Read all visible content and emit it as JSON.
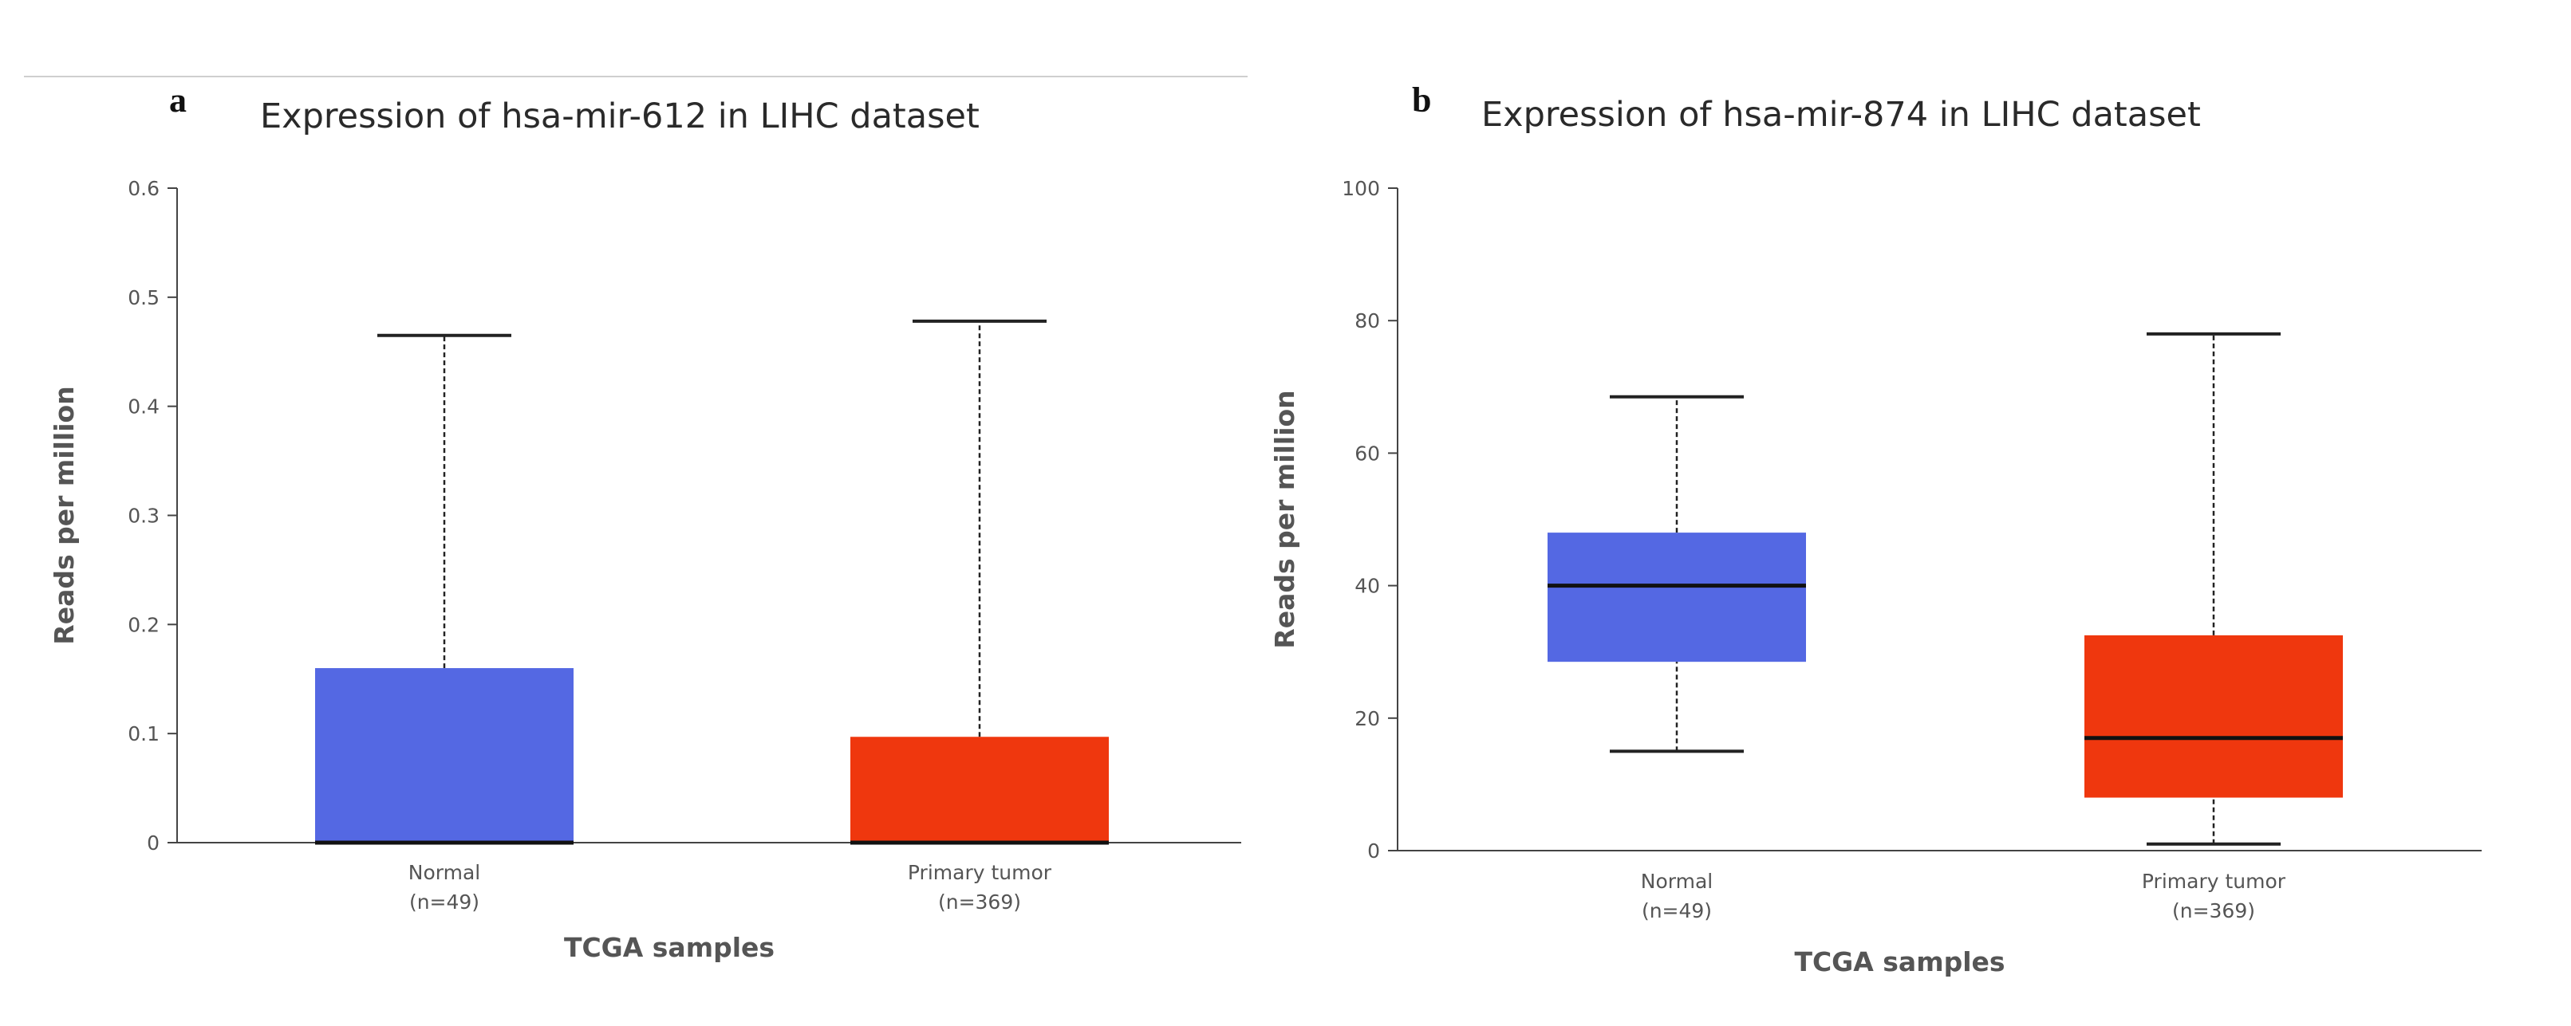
{
  "chart_data": [
    {
      "type": "box",
      "panel_letter": "a",
      "title": "Expression of hsa-mir-612 in LIHC dataset",
      "xlabel": "TCGA samples",
      "ylabel": "Reads per million",
      "ylim": [
        0,
        0.6
      ],
      "yticks": [
        0,
        0.1,
        0.2,
        0.3,
        0.4,
        0.5,
        0.6
      ],
      "ytick_labels": [
        "0",
        "0.1",
        "0.2",
        "0.3",
        "0.4",
        "0.5",
        "0.6"
      ],
      "grid": false,
      "categories": [
        {
          "name": "Normal",
          "n_label": "(n=49)",
          "color": "#5468e3",
          "whisker_low": 0,
          "q1": 0,
          "median": 0,
          "q3": 0.16,
          "whisker_high": 0.465
        },
        {
          "name": "Primary tumor",
          "n_label": "(n=369)",
          "color": "#ef370e",
          "whisker_low": 0,
          "q1": 0,
          "median": 0,
          "q3": 0.097,
          "whisker_high": 0.478
        }
      ]
    },
    {
      "type": "box",
      "panel_letter": "b",
      "title": "Expression of hsa-mir-874 in LIHC dataset",
      "xlabel": "TCGA samples",
      "ylabel": "Reads per million",
      "ylim": [
        0,
        100
      ],
      "yticks": [
        0,
        20,
        40,
        60,
        80,
        100
      ],
      "ytick_labels": [
        "0",
        "20",
        "40",
        "60",
        "80",
        "100"
      ],
      "grid": false,
      "categories": [
        {
          "name": "Normal",
          "n_label": "(n=49)",
          "color": "#5468e3",
          "whisker_low": 15,
          "q1": 28.5,
          "median": 40,
          "q3": 48,
          "whisker_high": 68.5
        },
        {
          "name": "Primary tumor",
          "n_label": "(n=369)",
          "color": "#ef370e",
          "whisker_low": 1,
          "q1": 8,
          "median": 17,
          "q3": 32.5,
          "whisker_high": 78
        }
      ]
    }
  ]
}
